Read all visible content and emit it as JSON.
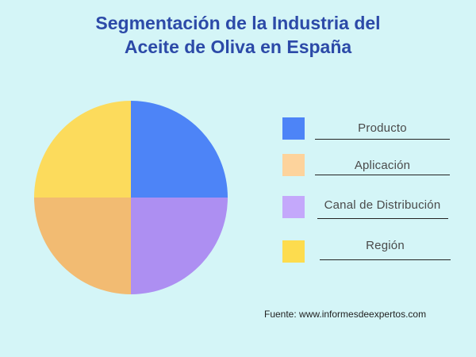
{
  "chart_data": {
    "type": "pie",
    "title_lines": [
      "Segmentación de la Industria del",
      "Aceite de Oliva en España"
    ],
    "slices": [
      {
        "label": "Producto",
        "value": 25,
        "color": "#4d84f7"
      },
      {
        "label": "Aplicación",
        "value": 25,
        "color": "#f2bb72"
      },
      {
        "label": "Canal de Distribución",
        "value": 25,
        "color": "#ad8ff2"
      },
      {
        "label": "Región",
        "value": 25,
        "color": "#fcdb5c"
      }
    ],
    "legend_position": "right",
    "source": "Fuente: www.informesdeexpertos.com"
  },
  "legend_colors": {
    "Producto": "#4d84f7",
    "Aplicación": "#fdd39c",
    "Canal de Distribución": "#c4a8fb",
    "Región": "#fddc4e"
  }
}
